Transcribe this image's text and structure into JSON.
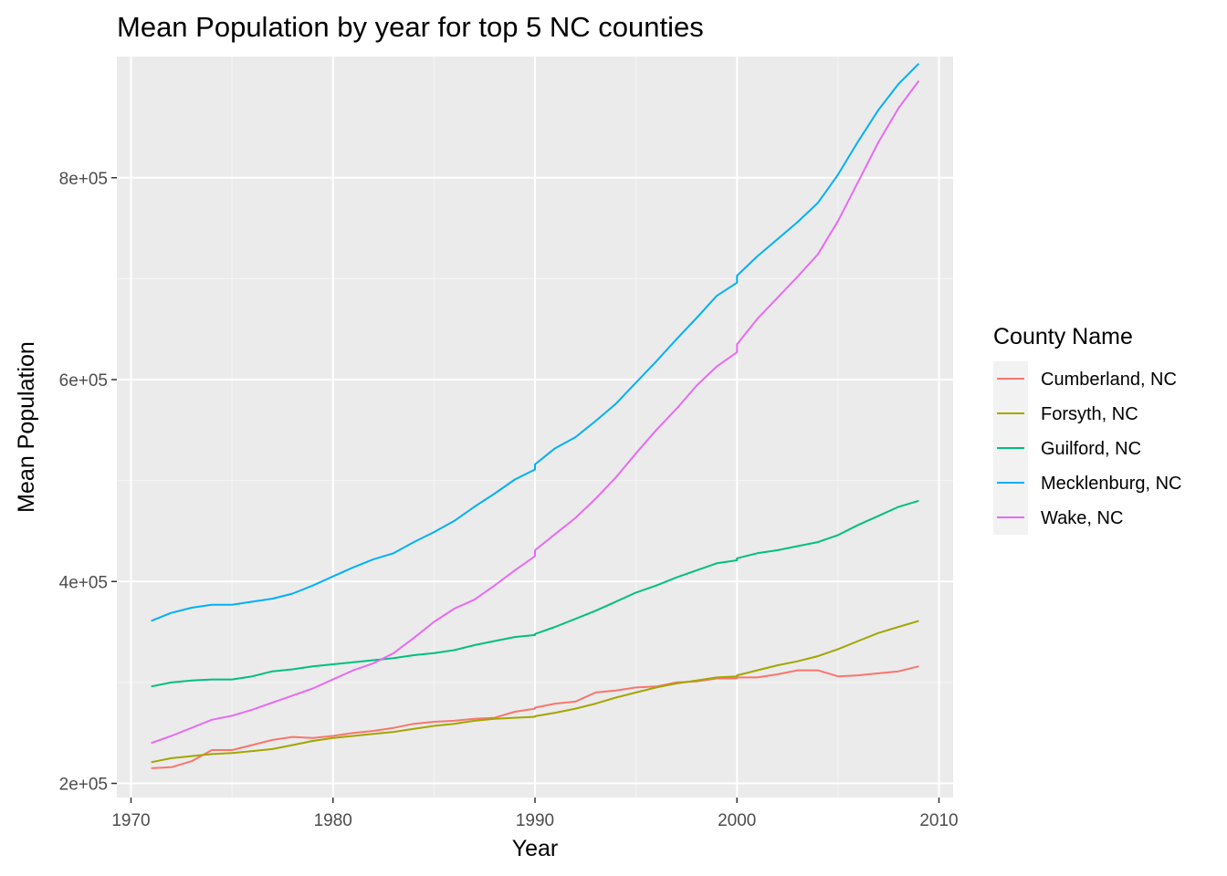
{
  "chart_data": {
    "type": "line",
    "title": "Mean Population by year for top 5 NC counties",
    "xlabel": "Year",
    "ylabel": "Mean  Population",
    "xlim": [
      1969.3,
      2010.7
    ],
    "ylim": [
      186000,
      920000
    ],
    "x_ticks": [
      1970,
      1980,
      1990,
      2000,
      2010
    ],
    "x_tick_labels": [
      "1970",
      "1980",
      "1990",
      "2000",
      "2010"
    ],
    "y_ticks": [
      200000,
      400000,
      600000,
      800000
    ],
    "y_tick_labels": [
      "2e+05",
      "4e+05",
      "6e+05",
      "8e+05"
    ],
    "grid": true,
    "legend": {
      "title": "County Name",
      "position": "right"
    },
    "series": [
      {
        "name": "Cumberland, NC",
        "color": "#F8766D",
        "points": [
          [
            1971,
            215000
          ],
          [
            1972,
            216000
          ],
          [
            1973,
            222000
          ],
          [
            1974,
            233000
          ],
          [
            1975,
            233000
          ],
          [
            1976,
            238000
          ],
          [
            1977,
            243000
          ],
          [
            1978,
            246000
          ],
          [
            1979,
            245000
          ],
          [
            1980,
            247000
          ],
          [
            1981,
            250000
          ],
          [
            1982,
            252000
          ],
          [
            1983,
            255000
          ],
          [
            1984,
            259000
          ],
          [
            1985,
            261000
          ],
          [
            1986,
            262000
          ],
          [
            1987,
            264000
          ],
          [
            1988,
            265000
          ],
          [
            1989,
            271000
          ],
          [
            1990,
            274000
          ],
          [
            1990,
            275000
          ],
          [
            1991,
            279000
          ],
          [
            1992,
            281000
          ],
          [
            1993,
            290000
          ],
          [
            1994,
            292000
          ],
          [
            1995,
            295000
          ],
          [
            1996,
            296000
          ],
          [
            1997,
            300000
          ],
          [
            1998,
            301000
          ],
          [
            1999,
            304000
          ],
          [
            2000,
            304000
          ],
          [
            2000,
            305000
          ],
          [
            2001,
            305000
          ],
          [
            2002,
            308000
          ],
          [
            2003,
            312000
          ],
          [
            2004,
            312000
          ],
          [
            2005,
            306000
          ],
          [
            2006,
            307000
          ],
          [
            2007,
            309000
          ],
          [
            2008,
            311000
          ],
          [
            2009,
            316000
          ]
        ]
      },
      {
        "name": "Forsyth, NC",
        "color": "#A3A500",
        "points": [
          [
            1971,
            221000
          ],
          [
            1972,
            225000
          ],
          [
            1973,
            227000
          ],
          [
            1974,
            229000
          ],
          [
            1975,
            230000
          ],
          [
            1976,
            232000
          ],
          [
            1977,
            234000
          ],
          [
            1978,
            238000
          ],
          [
            1979,
            242000
          ],
          [
            1980,
            245000
          ],
          [
            1981,
            247000
          ],
          [
            1982,
            249000
          ],
          [
            1983,
            251000
          ],
          [
            1984,
            254000
          ],
          [
            1985,
            257000
          ],
          [
            1986,
            259000
          ],
          [
            1987,
            262000
          ],
          [
            1988,
            264000
          ],
          [
            1989,
            265000
          ],
          [
            1990,
            266000
          ],
          [
            1990,
            266500
          ],
          [
            1991,
            270000
          ],
          [
            1992,
            274000
          ],
          [
            1993,
            279000
          ],
          [
            1994,
            285000
          ],
          [
            1995,
            290000
          ],
          [
            1996,
            295000
          ],
          [
            1997,
            299000
          ],
          [
            1998,
            302000
          ],
          [
            1999,
            305000
          ],
          [
            2000,
            306000
          ],
          [
            2000,
            307000
          ],
          [
            2001,
            312000
          ],
          [
            2002,
            317000
          ],
          [
            2003,
            321000
          ],
          [
            2004,
            326000
          ],
          [
            2005,
            333000
          ],
          [
            2006,
            341000
          ],
          [
            2007,
            349000
          ],
          [
            2008,
            355000
          ],
          [
            2009,
            361000
          ]
        ]
      },
      {
        "name": "Guilford, NC",
        "color": "#00BF7D",
        "points": [
          [
            1971,
            296000
          ],
          [
            1972,
            300000
          ],
          [
            1973,
            302000
          ],
          [
            1974,
            303000
          ],
          [
            1975,
            303000
          ],
          [
            1976,
            306000
          ],
          [
            1977,
            311000
          ],
          [
            1978,
            313000
          ],
          [
            1979,
            316000
          ],
          [
            1980,
            318000
          ],
          [
            1981,
            320000
          ],
          [
            1982,
            322000
          ],
          [
            1983,
            324000
          ],
          [
            1984,
            327000
          ],
          [
            1985,
            329000
          ],
          [
            1986,
            332000
          ],
          [
            1987,
            337000
          ],
          [
            1988,
            341000
          ],
          [
            1989,
            345000
          ],
          [
            1990,
            347000
          ],
          [
            1990,
            348000
          ],
          [
            1991,
            355000
          ],
          [
            1992,
            363000
          ],
          [
            1993,
            371000
          ],
          [
            1994,
            380000
          ],
          [
            1995,
            389000
          ],
          [
            1996,
            396000
          ],
          [
            1997,
            404000
          ],
          [
            1998,
            411000
          ],
          [
            1999,
            418000
          ],
          [
            2000,
            421000
          ],
          [
            2000,
            423000
          ],
          [
            2001,
            428000
          ],
          [
            2002,
            431000
          ],
          [
            2003,
            435000
          ],
          [
            2004,
            439000
          ],
          [
            2005,
            446000
          ],
          [
            2006,
            456000
          ],
          [
            2007,
            465000
          ],
          [
            2008,
            474000
          ],
          [
            2009,
            480000
          ]
        ]
      },
      {
        "name": "Mecklenburg, NC",
        "color": "#00B0F6",
        "points": [
          [
            1971,
            361000
          ],
          [
            1972,
            369000
          ],
          [
            1973,
            374000
          ],
          [
            1974,
            377000
          ],
          [
            1975,
            377000
          ],
          [
            1976,
            380000
          ],
          [
            1977,
            383000
          ],
          [
            1978,
            388000
          ],
          [
            1979,
            396000
          ],
          [
            1980,
            405000
          ],
          [
            1981,
            414000
          ],
          [
            1982,
            422000
          ],
          [
            1983,
            428000
          ],
          [
            1984,
            439000
          ],
          [
            1985,
            449000
          ],
          [
            1986,
            460000
          ],
          [
            1987,
            474000
          ],
          [
            1988,
            487000
          ],
          [
            1989,
            501000
          ],
          [
            1990,
            511000
          ],
          [
            1990,
            516000
          ],
          [
            1991,
            532000
          ],
          [
            1992,
            543000
          ],
          [
            1993,
            559000
          ],
          [
            1994,
            576000
          ],
          [
            1995,
            597000
          ],
          [
            1996,
            618000
          ],
          [
            1997,
            640000
          ],
          [
            1998,
            661000
          ],
          [
            1999,
            683000
          ],
          [
            2000,
            696000
          ],
          [
            2000,
            703000
          ],
          [
            2001,
            722000
          ],
          [
            2002,
            739000
          ],
          [
            2003,
            756000
          ],
          [
            2004,
            775000
          ],
          [
            2005,
            803000
          ],
          [
            2006,
            836000
          ],
          [
            2007,
            867000
          ],
          [
            2008,
            893000
          ],
          [
            2009,
            913000
          ]
        ]
      },
      {
        "name": "Wake, NC",
        "color": "#E76BF3",
        "points": [
          [
            1971,
            240000
          ],
          [
            1972,
            247000
          ],
          [
            1973,
            255000
          ],
          [
            1974,
            263000
          ],
          [
            1975,
            267000
          ],
          [
            1976,
            273000
          ],
          [
            1977,
            280000
          ],
          [
            1978,
            287000
          ],
          [
            1979,
            294000
          ],
          [
            1980,
            303000
          ],
          [
            1981,
            312000
          ],
          [
            1982,
            319000
          ],
          [
            1983,
            329000
          ],
          [
            1984,
            344000
          ],
          [
            1985,
            360000
          ],
          [
            1986,
            373000
          ],
          [
            1987,
            382000
          ],
          [
            1988,
            396000
          ],
          [
            1989,
            411000
          ],
          [
            1990,
            425000
          ],
          [
            1990,
            431000
          ],
          [
            1991,
            447000
          ],
          [
            1992,
            463000
          ],
          [
            1993,
            482000
          ],
          [
            1994,
            503000
          ],
          [
            1995,
            527000
          ],
          [
            1996,
            550000
          ],
          [
            1997,
            571000
          ],
          [
            1998,
            594000
          ],
          [
            1999,
            613000
          ],
          [
            2000,
            627000
          ],
          [
            2000,
            635000
          ],
          [
            2001,
            660000
          ],
          [
            2002,
            681000
          ],
          [
            2003,
            702000
          ],
          [
            2004,
            724000
          ],
          [
            2005,
            757000
          ],
          [
            2006,
            796000
          ],
          [
            2007,
            835000
          ],
          [
            2008,
            869000
          ],
          [
            2009,
            896000
          ]
        ]
      }
    ]
  }
}
